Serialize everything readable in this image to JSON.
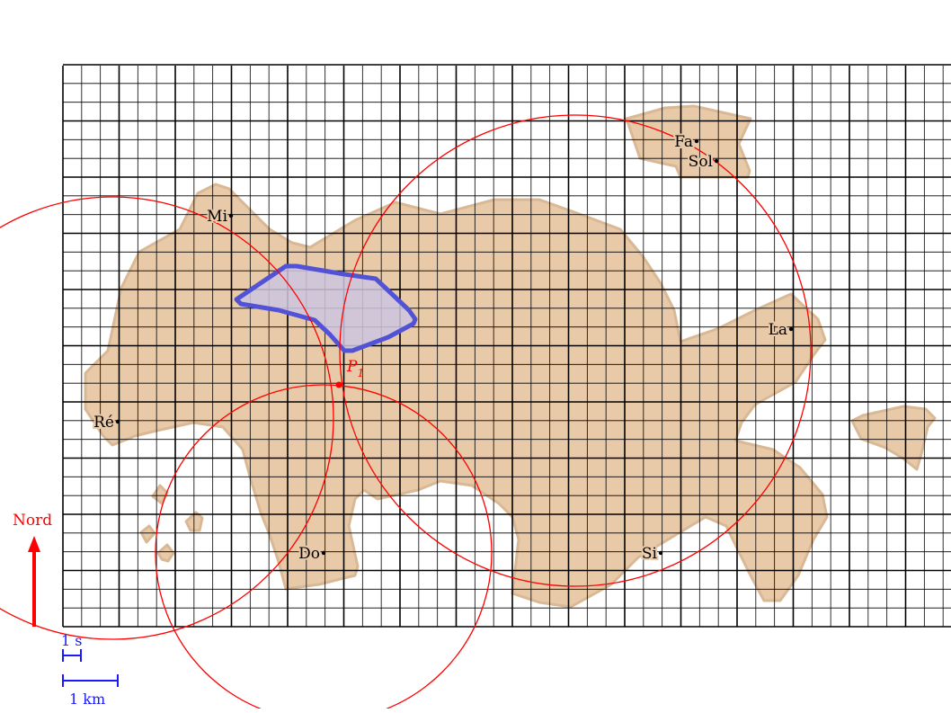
{
  "cities": [
    {
      "name": "Fa",
      "col": 22,
      "row": 13
    },
    {
      "name": "Sol",
      "col": 23.5,
      "row": 12
    },
    {
      "name": "Mi",
      "col": 6,
      "row": 8.5
    },
    {
      "name": "La",
      "col": 26,
      "row": 5.5
    },
    {
      "name": "Ré",
      "col": 2,
      "row": 3.75
    },
    {
      "name": "Do",
      "col": 9.5,
      "row": 1.25
    },
    {
      "name": "Si",
      "col": 21.5,
      "row": 1.25
    }
  ],
  "point_label": {
    "main": "P",
    "sub": "1"
  },
  "north_label": "Nord",
  "scale": {
    "time_label": "1 s",
    "distance_label": "1 km"
  },
  "colors": {
    "land": "#e8c9a8",
    "land_stroke": "#d9b896",
    "region_fill": "#cdc6e0",
    "region_stroke": "#5252d6",
    "circles": "#ff0000",
    "grid": "#000000",
    "scale_color": "#1a1aff"
  }
}
